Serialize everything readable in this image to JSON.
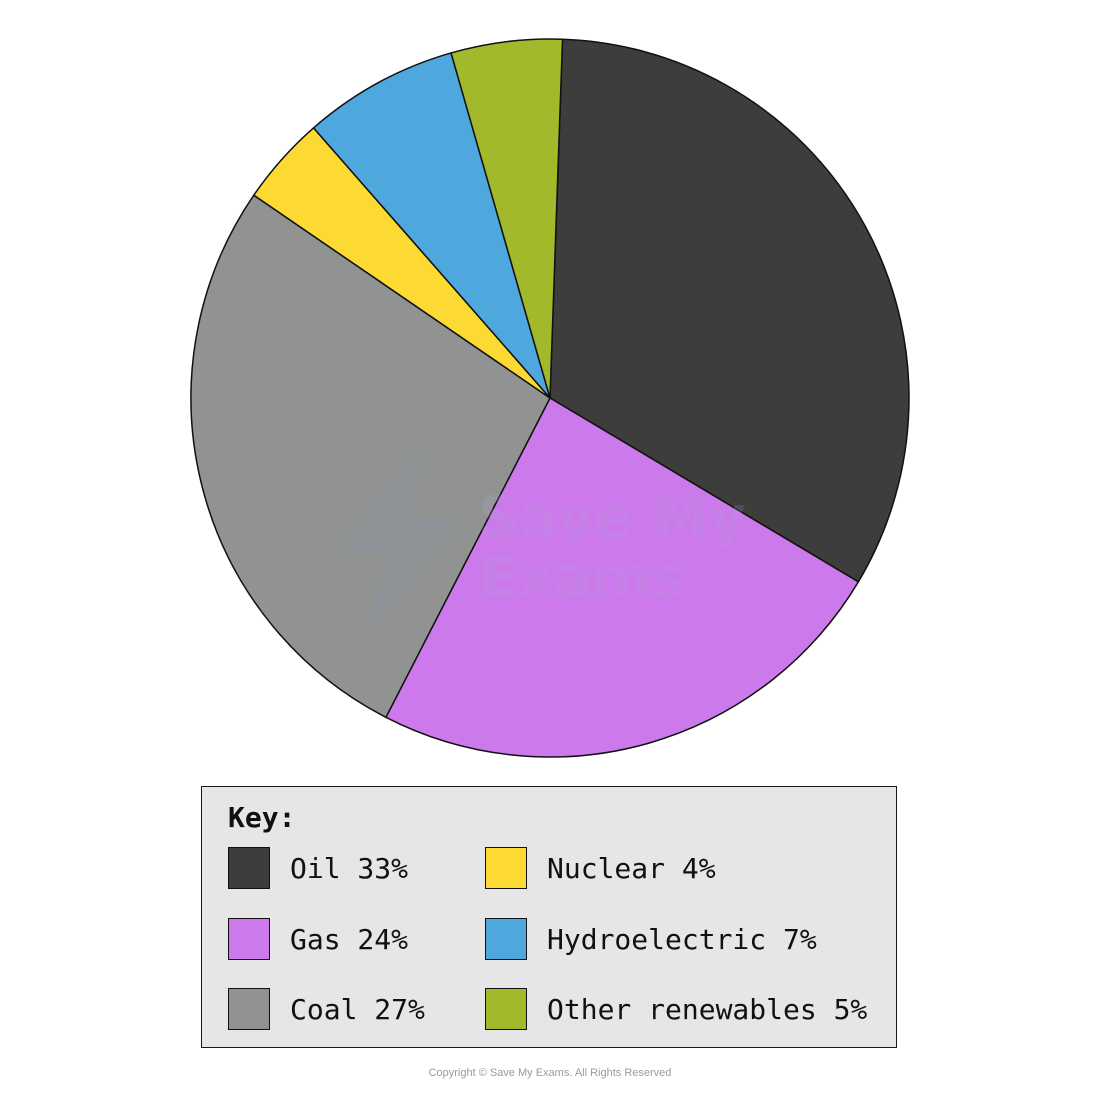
{
  "chart_data": {
    "type": "pie",
    "title": "",
    "slices": [
      {
        "label": "Oil 33%",
        "value": 33,
        "color": "#3d3d3c"
      },
      {
        "label": "Gas 24%",
        "value": 24,
        "color": "#cb79eb"
      },
      {
        "label": "Coal 27%",
        "value": 27,
        "color": "#919392"
      },
      {
        "label": "Nuclear 4%",
        "value": 4,
        "color": "#fdda33"
      },
      {
        "label": "Hydroelectric 7%",
        "value": 7,
        "color": "#4ea8de"
      },
      {
        "label": "Other renewables 5%",
        "value": 5,
        "color": "#a2b92c"
      }
    ],
    "legend_placement": "bottom"
  },
  "key": {
    "title": "Key:"
  },
  "watermark": {
    "line1": "Save My",
    "line2": "Exams"
  },
  "footer": {
    "copyright": "Copyright © Save My Exams. All Rights Reserved"
  }
}
